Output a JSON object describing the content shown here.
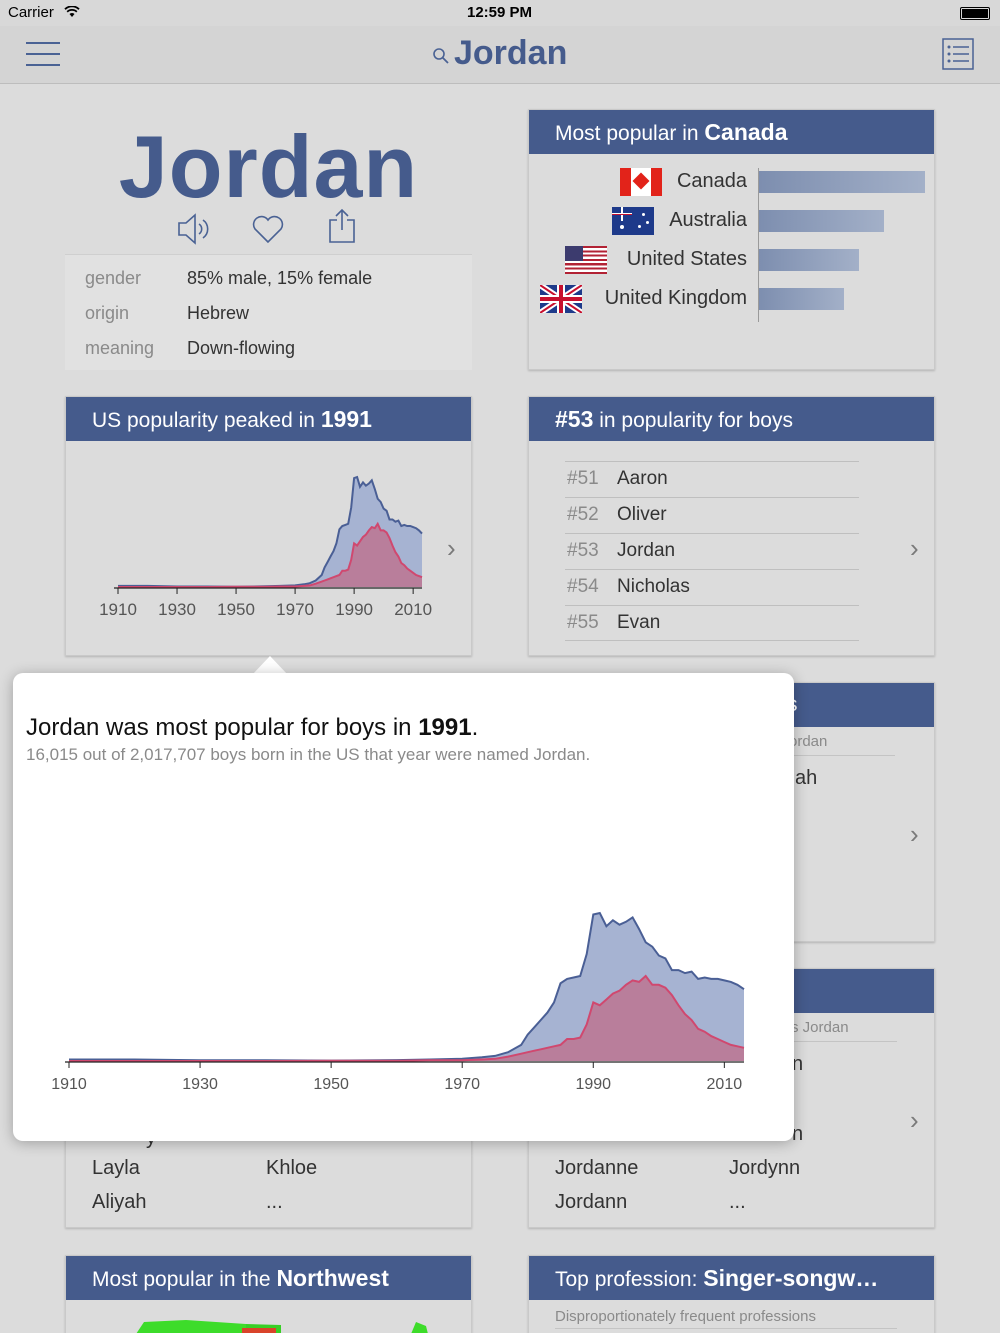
{
  "status": {
    "carrier": "Carrier",
    "time": "12:59 PM"
  },
  "nav": {
    "title": "Jordan"
  },
  "name_card": {
    "name": "Jordan",
    "rows": [
      {
        "label": "gender",
        "value": "85% male, 15% female"
      },
      {
        "label": "origin",
        "value": "Hebrew"
      },
      {
        "label": "meaning",
        "value": "Down-flowing"
      }
    ]
  },
  "countries_card": {
    "title_prefix": "Most popular in ",
    "title_bold": "Canada",
    "countries": [
      {
        "name": "Canada",
        "value": 1.0
      },
      {
        "name": "Australia",
        "value": 0.75
      },
      {
        "name": "United States",
        "value": 0.6
      },
      {
        "name": "United Kingdom",
        "value": 0.51
      }
    ]
  },
  "peak_card": {
    "title_prefix": "US popularity peaked in ",
    "title_bold": "1991"
  },
  "rank_card": {
    "title_bold": "#53",
    "title_suffix": " in popularity for boys",
    "rows": [
      {
        "rank": "#51",
        "name": "Aaron"
      },
      {
        "rank": "#52",
        "name": "Oliver"
      },
      {
        "rank": "#53",
        "name": "Jordan"
      },
      {
        "rank": "#54",
        "name": "Nicholas"
      },
      {
        "rank": "#55",
        "name": "Evan"
      }
    ]
  },
  "hidden_cards": {
    "card3_head_fragment": "s",
    "card3_sub_fragment": "ordan",
    "card3_item_fragment": "ah",
    "card4_sub_fragment": "s Jordan",
    "card4_frag1": "n",
    "card4_frag2": "n",
    "left_frag": "y",
    "left_names": [
      [
        "Layla",
        "Khloe"
      ],
      [
        "Aliyah",
        "..."
      ]
    ],
    "right_names": [
      [
        "Jordanne",
        "Jordynn"
      ],
      [
        "Jordann",
        "..."
      ]
    ]
  },
  "region_card": {
    "title_prefix": "Most popular in the ",
    "title_bold": "Northwest"
  },
  "profession_card": {
    "title_prefix": "Top profession: ",
    "title_bold": "Singer-songw…",
    "subtitle": "Disproportionately frequent professions"
  },
  "popover": {
    "headline_prefix": "Jordan was most popular for boys in ",
    "headline_bold": "1991",
    "headline_suffix": ".",
    "subline": "16,015 out of 2,017,707 boys born in the US that year were named Jordan."
  },
  "chart_data": {
    "type": "area",
    "x_ticks": [
      "1910",
      "1930",
      "1950",
      "1970",
      "1990",
      "2010"
    ],
    "xlim": [
      1910,
      2013
    ],
    "series": [
      {
        "color": "#a6b3d2",
        "stroke": "#4a5f95",
        "x": [
          1910,
          1920,
          1930,
          1940,
          1950,
          1960,
          1965,
          1970,
          1973,
          1975,
          1977,
          1979,
          1980,
          1981,
          1982,
          1983,
          1984,
          1985,
          1986,
          1987,
          1988,
          1989,
          1990,
          1991,
          1992,
          1993,
          1994,
          1995,
          1996,
          1997,
          1998,
          1999,
          2000,
          2001,
          2002,
          2003,
          2004,
          2005,
          2006,
          2007,
          2008,
          2009,
          2010,
          2011,
          2012,
          2013
        ],
        "values": [
          1,
          1,
          0.5,
          0.5,
          0.3,
          0.6,
          1,
          1.5,
          2.5,
          3.5,
          6,
          11,
          18,
          23,
          28,
          33,
          40,
          53,
          56,
          57,
          58,
          73,
          100,
          101,
          92,
          96,
          93,
          95,
          98,
          90,
          81,
          78,
          72,
          70,
          62,
          62,
          60,
          61,
          56,
          57,
          56,
          56,
          55,
          54,
          52,
          49
        ]
      },
      {
        "color": "#b97e9b",
        "stroke": "#d0486f",
        "x": [
          1910,
          1920,
          1930,
          1940,
          1950,
          1960,
          1965,
          1970,
          1973,
          1975,
          1977,
          1979,
          1980,
          1981,
          1982,
          1983,
          1984,
          1985,
          1986,
          1987,
          1988,
          1989,
          1990,
          1991,
          1992,
          1993,
          1994,
          1995,
          1996,
          1997,
          1998,
          1999,
          2000,
          2001,
          2002,
          2003,
          2004,
          2005,
          2006,
          2007,
          2008,
          2009,
          2010,
          2011,
          2012,
          2013
        ],
        "values": [
          0,
          0,
          0,
          0,
          0.2,
          0.2,
          0.5,
          0.5,
          1,
          1.5,
          3,
          5,
          6,
          7,
          8,
          9,
          10,
          11,
          15,
          15,
          16,
          25,
          40,
          38,
          42,
          46,
          48,
          52,
          55,
          54,
          58,
          52,
          52,
          50,
          45,
          38,
          32,
          28,
          22,
          20,
          17,
          15,
          13,
          11,
          10,
          9
        ]
      }
    ]
  }
}
